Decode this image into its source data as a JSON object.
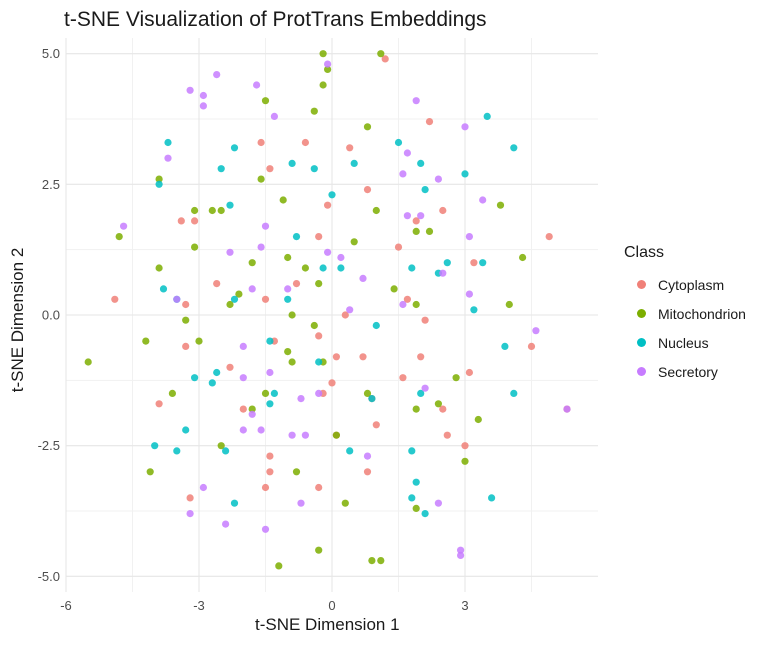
{
  "chart_data": {
    "type": "scatter",
    "title": "t-SNE Visualization of ProtTrans Embeddings",
    "xlabel": "t-SNE Dimension 1",
    "ylabel": "t-SNE Dimension 2",
    "xlim": [
      -6,
      6
    ],
    "ylim": [
      -5.3,
      5.3
    ],
    "xticks": [
      -6,
      -3,
      0,
      3
    ],
    "xtick_labels": [
      "-6",
      "-3",
      "0",
      "3"
    ],
    "yticks": [
      -5,
      -2.5,
      0,
      2.5,
      5
    ],
    "ytick_labels": [
      "-5.0",
      "-2.5",
      "0.0",
      "2.5",
      "5.0"
    ],
    "grid": true,
    "legend_position": "right",
    "legend_title": "Class",
    "series": [
      {
        "name": "Cytoplasm",
        "color": "#F08078",
        "points": [
          [
            1.2,
            4.9
          ],
          [
            2.2,
            3.7
          ],
          [
            -0.6,
            3.3
          ],
          [
            -1.6,
            3.3
          ],
          [
            0.4,
            3.2
          ],
          [
            -1.4,
            2.8
          ],
          [
            0.8,
            2.4
          ],
          [
            -0.1,
            2.1
          ],
          [
            2.5,
            2.0
          ],
          [
            1.9,
            1.8
          ],
          [
            -3.4,
            1.8
          ],
          [
            -3.1,
            1.8
          ],
          [
            4.9,
            1.5
          ],
          [
            -0.3,
            1.5
          ],
          [
            1.5,
            1.3
          ],
          [
            3.2,
            1.0
          ],
          [
            -0.8,
            0.6
          ],
          [
            -2.6,
            0.6
          ],
          [
            1.7,
            0.3
          ],
          [
            -3.3,
            0.2
          ],
          [
            -4.9,
            0.3
          ],
          [
            -1.5,
            0.3
          ],
          [
            0.3,
            0.0
          ],
          [
            2.1,
            -0.1
          ],
          [
            -0.3,
            -0.4
          ],
          [
            -3.3,
            -0.6
          ],
          [
            2.0,
            -0.8
          ],
          [
            -1.3,
            -0.5
          ],
          [
            4.5,
            -0.6
          ],
          [
            0.1,
            -0.8
          ],
          [
            0.7,
            -0.8
          ],
          [
            -2.3,
            -1.0
          ],
          [
            3.1,
            -1.1
          ],
          [
            1.6,
            -1.2
          ],
          [
            0.0,
            -1.3
          ],
          [
            -0.2,
            -1.5
          ],
          [
            0.9,
            -1.6
          ],
          [
            -3.9,
            -1.7
          ],
          [
            2.5,
            -1.8
          ],
          [
            5.3,
            -1.8
          ],
          [
            -2.0,
            -1.8
          ],
          [
            1.0,
            -2.1
          ],
          [
            0.1,
            -2.3
          ],
          [
            2.6,
            -2.3
          ],
          [
            3.0,
            -2.5
          ],
          [
            -1.4,
            -2.7
          ],
          [
            -1.4,
            -3.0
          ],
          [
            0.8,
            -3.0
          ],
          [
            -1.5,
            -3.3
          ],
          [
            -0.3,
            -3.3
          ],
          [
            -3.2,
            -3.5
          ]
        ]
      },
      {
        "name": "Mitochondrion",
        "color": "#7CAE00",
        "points": [
          [
            1.1,
            5.0
          ],
          [
            -0.2,
            5.0
          ],
          [
            -0.1,
            4.7
          ],
          [
            -0.2,
            4.4
          ],
          [
            -1.5,
            4.1
          ],
          [
            -0.4,
            3.9
          ],
          [
            0.8,
            3.6
          ],
          [
            -1.6,
            2.6
          ],
          [
            -3.9,
            2.6
          ],
          [
            -1.1,
            2.2
          ],
          [
            -3.1,
            2.0
          ],
          [
            -2.5,
            2.0
          ],
          [
            -2.7,
            2.0
          ],
          [
            1.0,
            2.0
          ],
          [
            3.8,
            2.1
          ],
          [
            -4.8,
            1.5
          ],
          [
            1.9,
            1.6
          ],
          [
            2.2,
            1.6
          ],
          [
            0.5,
            1.4
          ],
          [
            -3.1,
            1.3
          ],
          [
            -1.8,
            1.0
          ],
          [
            -1.0,
            1.1
          ],
          [
            4.3,
            1.1
          ],
          [
            -3.9,
            0.9
          ],
          [
            -0.6,
            0.9
          ],
          [
            -0.3,
            0.6
          ],
          [
            1.4,
            0.5
          ],
          [
            -2.1,
            0.4
          ],
          [
            1.9,
            0.2
          ],
          [
            4.0,
            0.2
          ],
          [
            -2.3,
            0.2
          ],
          [
            -0.9,
            0.0
          ],
          [
            -3.3,
            -0.1
          ],
          [
            -0.4,
            -0.2
          ],
          [
            -5.5,
            -0.9
          ],
          [
            -4.2,
            -0.5
          ],
          [
            -3.0,
            -0.5
          ],
          [
            -1.0,
            -0.7
          ],
          [
            -0.9,
            -0.9
          ],
          [
            -0.2,
            -0.9
          ],
          [
            2.8,
            -1.2
          ],
          [
            -3.6,
            -1.5
          ],
          [
            -1.5,
            -1.5
          ],
          [
            0.8,
            -1.5
          ],
          [
            2.4,
            -1.7
          ],
          [
            1.9,
            -1.8
          ],
          [
            -1.8,
            -1.8
          ],
          [
            3.3,
            -2.0
          ],
          [
            0.1,
            -2.3
          ],
          [
            3.0,
            -2.8
          ],
          [
            -4.1,
            -3.0
          ],
          [
            -2.5,
            -2.5
          ],
          [
            -0.8,
            -3.0
          ],
          [
            0.3,
            -3.6
          ],
          [
            1.9,
            -3.7
          ],
          [
            -1.2,
            -4.8
          ],
          [
            -0.3,
            -4.5
          ],
          [
            0.9,
            -4.7
          ],
          [
            1.1,
            -4.7
          ]
        ]
      },
      {
        "name": "Nucleus",
        "color": "#00BFC4",
        "points": [
          [
            3.5,
            3.8
          ],
          [
            4.1,
            3.2
          ],
          [
            1.5,
            3.3
          ],
          [
            -3.7,
            3.3
          ],
          [
            -2.2,
            3.2
          ],
          [
            -0.4,
            2.8
          ],
          [
            -0.9,
            2.9
          ],
          [
            0.5,
            2.9
          ],
          [
            2.0,
            2.9
          ],
          [
            -2.5,
            2.8
          ],
          [
            3.0,
            2.7
          ],
          [
            -3.9,
            2.5
          ],
          [
            -2.3,
            2.1
          ],
          [
            0.0,
            2.3
          ],
          [
            2.1,
            2.4
          ],
          [
            -0.8,
            1.5
          ],
          [
            1.8,
            0.9
          ],
          [
            3.4,
            1.0
          ],
          [
            2.6,
            1.0
          ],
          [
            0.2,
            0.9
          ],
          [
            -0.2,
            0.9
          ],
          [
            -3.8,
            0.5
          ],
          [
            -3.5,
            0.3
          ],
          [
            -2.2,
            0.3
          ],
          [
            3.2,
            0.1
          ],
          [
            -1.0,
            0.3
          ],
          [
            2.4,
            0.8
          ],
          [
            -2.7,
            -1.3
          ],
          [
            -0.3,
            -0.9
          ],
          [
            -1.4,
            -0.5
          ],
          [
            3.9,
            -0.6
          ],
          [
            -2.6,
            -1.1
          ],
          [
            -3.1,
            -1.2
          ],
          [
            0.9,
            -1.6
          ],
          [
            -1.4,
            -1.7
          ],
          [
            4.1,
            -1.5
          ],
          [
            2.0,
            -1.5
          ],
          [
            -4.0,
            -2.5
          ],
          [
            -3.3,
            -2.2
          ],
          [
            -3.5,
            -2.6
          ],
          [
            -2.4,
            -2.6
          ],
          [
            1.8,
            -2.6
          ],
          [
            0.4,
            -2.6
          ],
          [
            1.9,
            -3.2
          ],
          [
            3.6,
            -3.5
          ],
          [
            -2.2,
            -3.6
          ],
          [
            1.8,
            -3.5
          ],
          [
            2.1,
            -3.8
          ],
          [
            -1.3,
            -1.5
          ],
          [
            1.0,
            -0.2
          ]
        ]
      },
      {
        "name": "Secretory",
        "color": "#C77CFF",
        "points": [
          [
            -0.1,
            4.8
          ],
          [
            -3.2,
            4.3
          ],
          [
            -2.6,
            4.6
          ],
          [
            -1.7,
            4.4
          ],
          [
            -2.9,
            4.2
          ],
          [
            -1.3,
            3.8
          ],
          [
            -2.9,
            4.0
          ],
          [
            1.9,
            4.1
          ],
          [
            3.0,
            3.6
          ],
          [
            -3.7,
            3.0
          ],
          [
            1.7,
            3.1
          ],
          [
            1.6,
            2.7
          ],
          [
            2.4,
            2.6
          ],
          [
            3.4,
            2.2
          ],
          [
            -4.7,
            1.7
          ],
          [
            1.7,
            1.9
          ],
          [
            3.1,
            1.5
          ],
          [
            0.2,
            1.1
          ],
          [
            2.0,
            1.9
          ],
          [
            -1.5,
            1.7
          ],
          [
            -0.1,
            1.2
          ],
          [
            -2.3,
            1.2
          ],
          [
            -1.6,
            1.3
          ],
          [
            -1.8,
            0.5
          ],
          [
            0.7,
            0.7
          ],
          [
            2.5,
            0.8
          ],
          [
            3.1,
            0.4
          ],
          [
            -1.0,
            0.5
          ],
          [
            -3.5,
            0.3
          ],
          [
            0.4,
            0.1
          ],
          [
            1.6,
            0.2
          ],
          [
            4.6,
            -0.3
          ],
          [
            -2.0,
            -0.6
          ],
          [
            -1.4,
            -1.1
          ],
          [
            -2.0,
            -1.2
          ],
          [
            -1.8,
            -1.9
          ],
          [
            2.1,
            -1.4
          ],
          [
            -0.7,
            -1.6
          ],
          [
            -0.3,
            -1.5
          ],
          [
            -0.9,
            -2.3
          ],
          [
            -2.0,
            -2.2
          ],
          [
            -2.9,
            -3.3
          ],
          [
            -1.6,
            -2.2
          ],
          [
            0.8,
            -2.7
          ],
          [
            -0.6,
            -2.3
          ],
          [
            2.4,
            -3.6
          ],
          [
            2.9,
            -4.5
          ],
          [
            2.9,
            -4.6
          ],
          [
            -3.2,
            -3.8
          ],
          [
            -2.4,
            -4.0
          ],
          [
            -1.5,
            -4.1
          ],
          [
            -0.7,
            -3.6
          ],
          [
            5.3,
            -1.8
          ]
        ]
      }
    ]
  }
}
